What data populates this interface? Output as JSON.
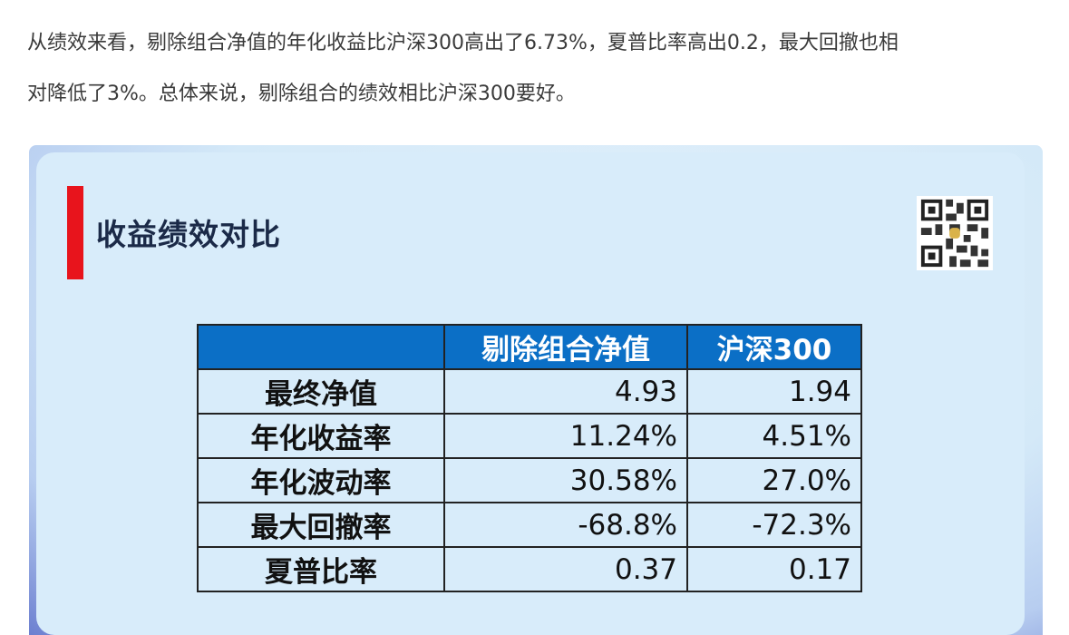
{
  "paragraph": {
    "lines": [
      "从绩效来看，剔除组合净值的年化收益比沪深300高出了6.73%，夏普比率高出0.2，最大回撤也相",
      "对降低了3%。总体来说，剔除组合的绩效相比沪深300要好。"
    ]
  },
  "card": {
    "title": "收益绩效对比"
  },
  "table": {
    "header": [
      "",
      "剔除组合净值",
      "沪深300"
    ],
    "rows": [
      [
        "最终净值",
        "4.93",
        "1.94"
      ],
      [
        "年化收益率",
        "11.24%",
        "4.51%"
      ],
      [
        "年化波动率",
        "30.58%",
        "27.0%"
      ],
      [
        "最大回撤率",
        "-68.8%",
        "-72.3%"
      ],
      [
        "夏普比率",
        "0.37",
        "0.17"
      ]
    ]
  }
}
